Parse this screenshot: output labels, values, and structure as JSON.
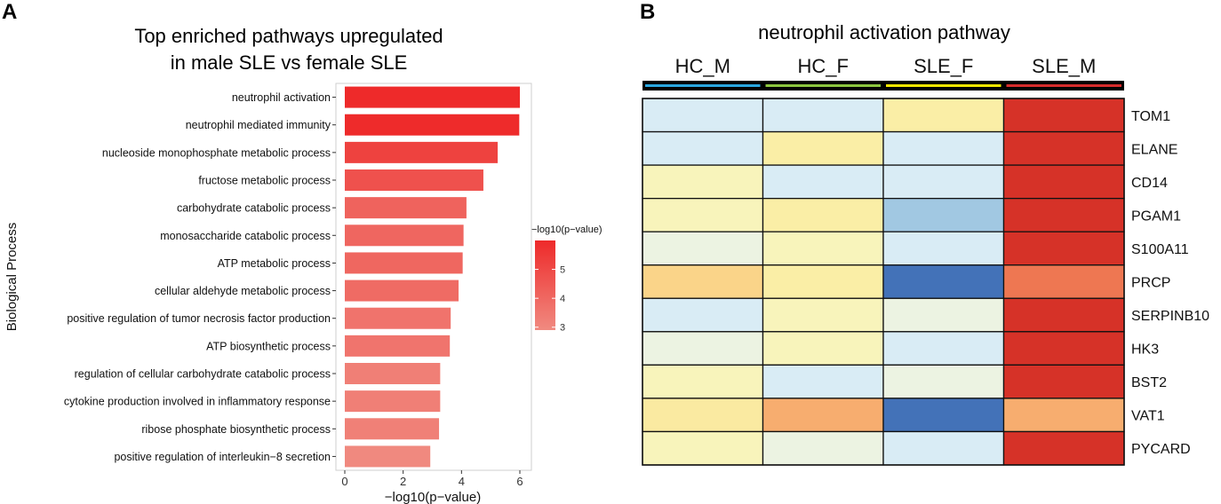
{
  "panel_a": {
    "letter": "A",
    "title_line1": "Top enriched pathways upregulated",
    "title_line2": "in male SLE vs female SLE"
  },
  "panel_b": {
    "letter": "B",
    "title": "neutrophil activation pathway"
  },
  "chart_data": [
    {
      "type": "bar",
      "orientation": "horizontal",
      "title": "Top enriched pathways upregulated in male SLE vs female SLE",
      "xlabel": "−log10(p−value)",
      "ylabel": "Biological Process",
      "xlim": [
        0,
        6.3
      ],
      "xticks": [
        0,
        2,
        4,
        6
      ],
      "categories": [
        "neutrophil activation",
        "neutrophil mediated immunity",
        "nucleoside monophosphate metabolic process",
        "fructose metabolic process",
        "carbohydrate catabolic process",
        "monosaccharide catabolic process",
        "ATP metabolic process",
        "cellular aldehyde metabolic process",
        "positive regulation of tumor necrosis factor production",
        "ATP biosynthetic process",
        "regulation of cellular carbohydrate catabolic process",
        "cytokine production involved in inflammatory response",
        "ribose phosphate biosynthetic process",
        "positive regulation of interleukin−8 secretion"
      ],
      "values": [
        6.0,
        5.98,
        5.24,
        4.75,
        4.17,
        4.07,
        4.04,
        3.9,
        3.63,
        3.6,
        3.27,
        3.27,
        3.23,
        2.93
      ],
      "legend": {
        "title": "−log10(p−value)",
        "ticks": [
          5,
          4,
          3
        ],
        "range": [
          2.9,
          6.0
        ],
        "colors": [
          "#f08a80",
          "#ee2a2a"
        ],
        "position": "right"
      }
    },
    {
      "type": "heatmap",
      "title": "neutrophil activation pathway",
      "columns": [
        "HC_M",
        "HC_F",
        "SLE_F",
        "SLE_M"
      ],
      "column_colors": [
        "#2aa7df",
        "#8cc63f",
        "#f2e600",
        "#d62b2b"
      ],
      "rows": [
        "TOM1",
        "ELANE",
        "CD14",
        "PGAM1",
        "S100A11",
        "PRCP",
        "SERPINB10",
        "HK3",
        "BST2",
        "VAT1",
        "PYCARD"
      ],
      "color_scale": {
        "min": -1.5,
        "max": 1.5,
        "colors": [
          "#4372b8",
          "#7ba6d3",
          "#abd0e6",
          "#e1f1f8",
          "#f3f5d3",
          "#faf4ae",
          "#fbdc8e",
          "#f6a86c",
          "#ec6b4c",
          "#d63228"
        ]
      },
      "values": [
        [
          -0.55,
          -0.55,
          0.25,
          1.5
        ],
        [
          -0.55,
          0.25,
          -0.55,
          1.5
        ],
        [
          0.05,
          -0.55,
          -0.55,
          1.5
        ],
        [
          0.05,
          0.25,
          -0.9,
          1.5
        ],
        [
          -0.3,
          0.05,
          -0.55,
          1.5
        ],
        [
          0.55,
          0.25,
          -1.5,
          1.1
        ],
        [
          -0.55,
          0.05,
          -0.3,
          1.5
        ],
        [
          -0.3,
          0.05,
          -0.55,
          1.5
        ],
        [
          0.05,
          -0.55,
          -0.3,
          1.5
        ],
        [
          0.3,
          0.8,
          -1.5,
          0.8
        ],
        [
          0.05,
          -0.3,
          -0.55,
          1.5
        ]
      ]
    }
  ]
}
